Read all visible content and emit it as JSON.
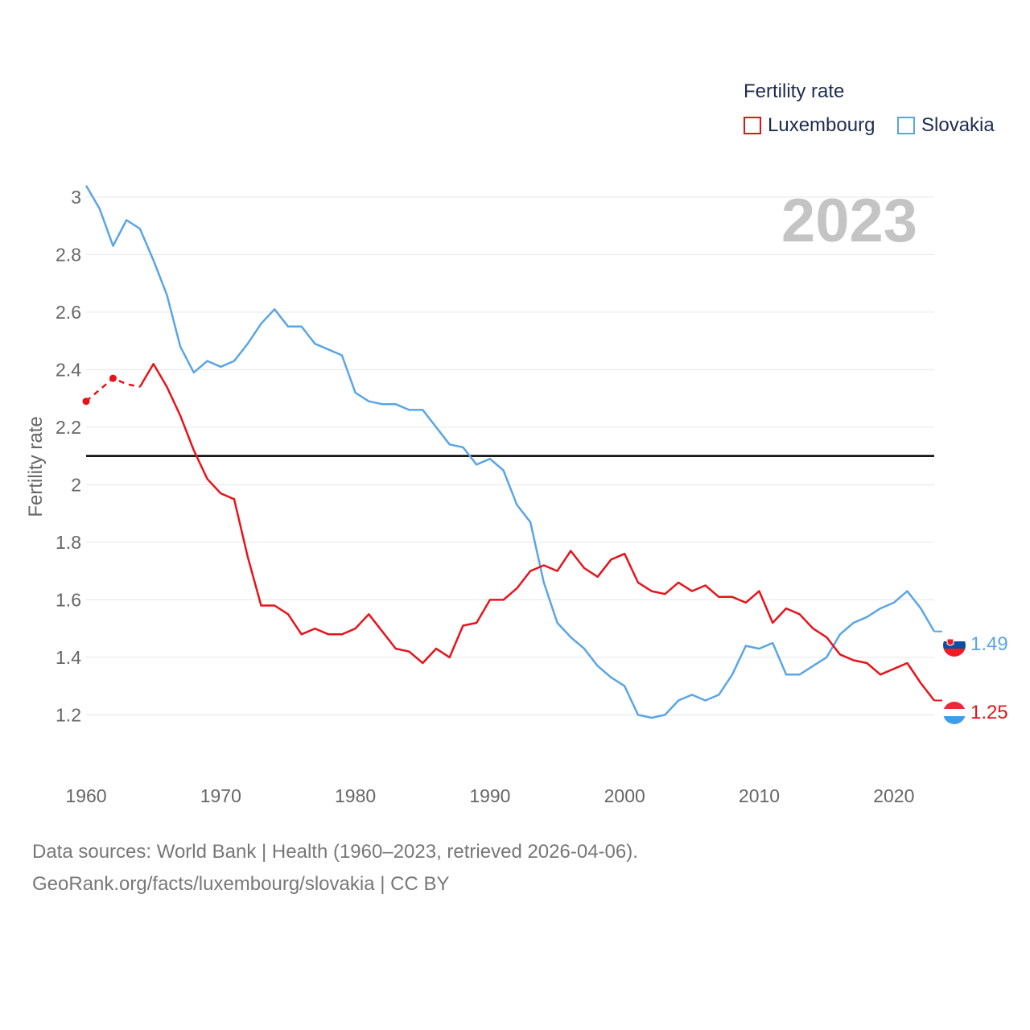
{
  "legend": {
    "title": "Fertility rate",
    "items": [
      {
        "label": "Luxembourg",
        "color": "#e8131a"
      },
      {
        "label": "Slovakia",
        "color": "#5aa5e6"
      }
    ]
  },
  "footer": {
    "line1": "Data sources: World Bank | Health (1960–2023, retrieved 2026-04-06).",
    "line2": "GeoRank.org/facts/luxembourg/slovakia | CC BY"
  },
  "chart_data": {
    "type": "line",
    "year_label": "2023",
    "ylabel": "Fertility rate",
    "xlabel": "",
    "xlim": [
      1960,
      2023
    ],
    "ylim": [
      1.05,
      3.05
    ],
    "x_ticks": [
      1960,
      1970,
      1980,
      1990,
      2000,
      2010,
      2020
    ],
    "y_ticks": [
      1.2,
      1.4,
      1.6,
      1.8,
      2,
      2.2,
      2.4,
      2.6,
      2.8,
      3
    ],
    "reference_line": 2.1,
    "grid": true,
    "series": [
      {
        "name": "Slovakia",
        "color": "#5aa5e6",
        "end_label": "1.49",
        "points": [
          [
            1960,
            3.04
          ],
          [
            1961,
            2.96
          ],
          [
            1962,
            2.83
          ],
          [
            1963,
            2.92
          ],
          [
            1964,
            2.89
          ],
          [
            1965,
            2.78
          ],
          [
            1966,
            2.66
          ],
          [
            1967,
            2.48
          ],
          [
            1968,
            2.39
          ],
          [
            1969,
            2.43
          ],
          [
            1970,
            2.41
          ],
          [
            1971,
            2.43
          ],
          [
            1972,
            2.49
          ],
          [
            1973,
            2.56
          ],
          [
            1974,
            2.61
          ],
          [
            1975,
            2.55
          ],
          [
            1976,
            2.55
          ],
          [
            1977,
            2.49
          ],
          [
            1978,
            2.47
          ],
          [
            1979,
            2.45
          ],
          [
            1980,
            2.32
          ],
          [
            1981,
            2.29
          ],
          [
            1982,
            2.28
          ],
          [
            1983,
            2.28
          ],
          [
            1984,
            2.26
          ],
          [
            1985,
            2.26
          ],
          [
            1986,
            2.2
          ],
          [
            1987,
            2.14
          ],
          [
            1988,
            2.13
          ],
          [
            1989,
            2.07
          ],
          [
            1990,
            2.09
          ],
          [
            1991,
            2.05
          ],
          [
            1992,
            1.93
          ],
          [
            1993,
            1.87
          ],
          [
            1994,
            1.66
          ],
          [
            1995,
            1.52
          ],
          [
            1996,
            1.47
          ],
          [
            1997,
            1.43
          ],
          [
            1998,
            1.37
          ],
          [
            1999,
            1.33
          ],
          [
            2000,
            1.3
          ],
          [
            2001,
            1.2
          ],
          [
            2002,
            1.19
          ],
          [
            2003,
            1.2
          ],
          [
            2004,
            1.25
          ],
          [
            2005,
            1.27
          ],
          [
            2006,
            1.25
          ],
          [
            2007,
            1.27
          ],
          [
            2008,
            1.34
          ],
          [
            2009,
            1.44
          ],
          [
            2010,
            1.43
          ],
          [
            2011,
            1.45
          ],
          [
            2012,
            1.34
          ],
          [
            2013,
            1.34
          ],
          [
            2014,
            1.37
          ],
          [
            2015,
            1.4
          ],
          [
            2016,
            1.48
          ],
          [
            2017,
            1.52
          ],
          [
            2018,
            1.54
          ],
          [
            2019,
            1.57
          ],
          [
            2020,
            1.59
          ],
          [
            2021,
            1.63
          ],
          [
            2022,
            1.57
          ],
          [
            2023,
            1.49
          ]
        ]
      },
      {
        "name": "Luxembourg",
        "color": "#e8131a",
        "end_label": "1.25",
        "estimated_points": [
          [
            1960,
            2.29
          ],
          [
            1962,
            2.37
          ],
          [
            1963,
            2.35
          ]
        ],
        "points": [
          [
            1964,
            2.34
          ],
          [
            1965,
            2.42
          ],
          [
            1966,
            2.34
          ],
          [
            1967,
            2.24
          ],
          [
            1968,
            2.12
          ],
          [
            1969,
            2.02
          ],
          [
            1970,
            1.97
          ],
          [
            1971,
            1.95
          ],
          [
            1972,
            1.75
          ],
          [
            1973,
            1.58
          ],
          [
            1974,
            1.58
          ],
          [
            1975,
            1.55
          ],
          [
            1976,
            1.48
          ],
          [
            1977,
            1.5
          ],
          [
            1978,
            1.48
          ],
          [
            1979,
            1.48
          ],
          [
            1980,
            1.5
          ],
          [
            1981,
            1.55
          ],
          [
            1982,
            1.49
          ],
          [
            1983,
            1.43
          ],
          [
            1984,
            1.42
          ],
          [
            1985,
            1.38
          ],
          [
            1986,
            1.43
          ],
          [
            1987,
            1.4
          ],
          [
            1988,
            1.51
          ],
          [
            1989,
            1.52
          ],
          [
            1990,
            1.6
          ],
          [
            1991,
            1.6
          ],
          [
            1992,
            1.64
          ],
          [
            1993,
            1.7
          ],
          [
            1994,
            1.72
          ],
          [
            1995,
            1.7
          ],
          [
            1996,
            1.77
          ],
          [
            1997,
            1.71
          ],
          [
            1998,
            1.68
          ],
          [
            1999,
            1.74
          ],
          [
            2000,
            1.76
          ],
          [
            2001,
            1.66
          ],
          [
            2002,
            1.63
          ],
          [
            2003,
            1.62
          ],
          [
            2004,
            1.66
          ],
          [
            2005,
            1.63
          ],
          [
            2006,
            1.65
          ],
          [
            2007,
            1.61
          ],
          [
            2008,
            1.61
          ],
          [
            2009,
            1.59
          ],
          [
            2010,
            1.63
          ],
          [
            2011,
            1.52
          ],
          [
            2012,
            1.57
          ],
          [
            2013,
            1.55
          ],
          [
            2014,
            1.5
          ],
          [
            2015,
            1.47
          ],
          [
            2016,
            1.41
          ],
          [
            2017,
            1.39
          ],
          [
            2018,
            1.38
          ],
          [
            2019,
            1.34
          ],
          [
            2020,
            1.36
          ],
          [
            2021,
            1.38
          ],
          [
            2022,
            1.31
          ],
          [
            2023,
            1.25
          ]
        ]
      }
    ]
  }
}
